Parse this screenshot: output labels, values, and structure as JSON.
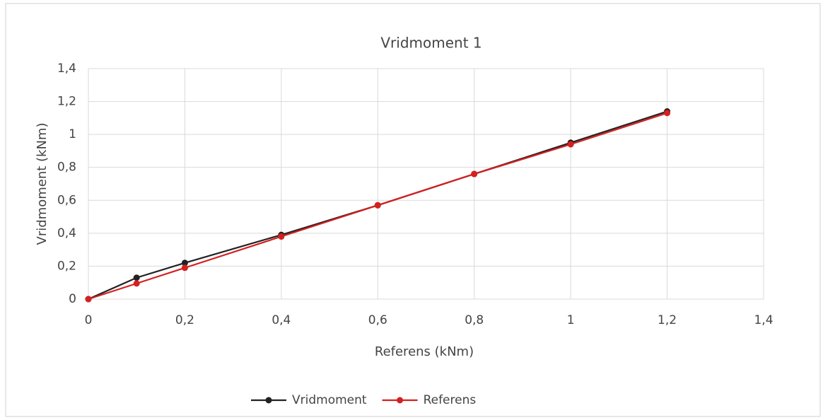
{
  "chart_data": {
    "type": "line",
    "title": "Vridmoment 1",
    "xlabel": "Referens (kNm)",
    "ylabel": "Vridmoment (kNm)",
    "x": [
      0,
      0.1,
      0.2,
      0.4,
      0.6,
      0.8,
      1.0,
      1.2
    ],
    "series": [
      {
        "name": "Vridmoment",
        "color": "#222222",
        "values": [
          0,
          0.13,
          0.22,
          0.39,
          0.57,
          0.76,
          0.95,
          1.14
        ]
      },
      {
        "name": "Referens",
        "color": "#d42020",
        "values": [
          0,
          0.095,
          0.19,
          0.38,
          0.57,
          0.76,
          0.94,
          1.13
        ]
      }
    ],
    "xlim": [
      0,
      1.4
    ],
    "ylim": [
      0,
      1.4
    ],
    "xticks": [
      0,
      {
        "value": 0.2,
        "label": "0,2"
      },
      {
        "value": 0.4,
        "label": "0,4"
      },
      {
        "value": 0.6,
        "label": "0,6"
      },
      {
        "value": 0.8,
        "label": "0,8"
      },
      1,
      {
        "value": 1.2,
        "label": "1,2"
      },
      {
        "value": 1.4,
        "label": "1,4"
      }
    ],
    "yticks": [
      0,
      {
        "value": 0.2,
        "label": "0,2"
      },
      {
        "value": 0.4,
        "label": "0,4"
      },
      {
        "value": 0.6,
        "label": "0,6"
      },
      {
        "value": 0.8,
        "label": "0,8"
      },
      1,
      {
        "value": 1.2,
        "label": "1,2"
      },
      {
        "value": 1.4,
        "label": "1,4"
      }
    ],
    "grid": true,
    "legend": "bottom"
  }
}
